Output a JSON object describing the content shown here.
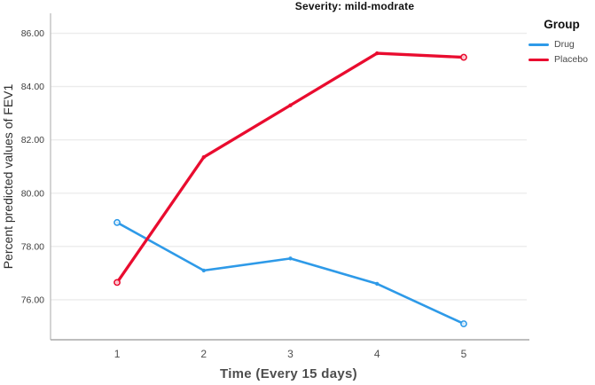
{
  "title": "Severity: mild-modrate",
  "legend": {
    "title": "Group",
    "items": [
      {
        "label": "Drug",
        "color": "#2e9ae8"
      },
      {
        "label": "Placebo",
        "color": "#e90c2f"
      }
    ]
  },
  "chart_data": {
    "type": "line",
    "title": "Severity: mild-modrate",
    "xlabel": "Time (Every 15 days)",
    "ylabel": "Percent predicted values of FEV1",
    "x": [
      1,
      2,
      3,
      4,
      5
    ],
    "xtick_labels": [
      "1",
      "2",
      "3",
      "4",
      "5"
    ],
    "series": [
      {
        "name": "Drug",
        "color": "#2e9ae8",
        "values": [
          78.9,
          77.1,
          77.55,
          76.6,
          75.1
        ]
      },
      {
        "name": "Placebo",
        "color": "#e90c2f",
        "values": [
          76.65,
          81.35,
          83.3,
          85.25,
          85.1
        ]
      }
    ],
    "yticks": [
      76,
      78,
      80,
      82,
      84,
      86
    ],
    "ytick_labels": [
      "76.00",
      "78.00",
      "80.00",
      "82.00",
      "84.00",
      "86.00"
    ],
    "ylim": [
      74.5,
      86.75
    ],
    "xlim": [
      0.232,
      5.727
    ],
    "grid": "horizontal",
    "legend_position": "top-right-outside"
  }
}
